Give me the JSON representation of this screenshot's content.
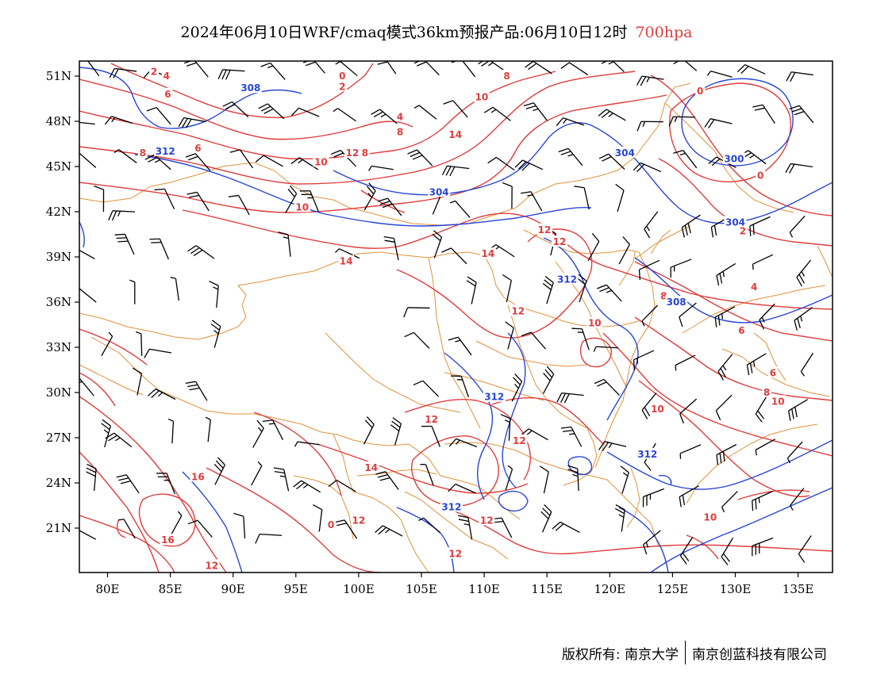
{
  "title": {
    "main": "2024年06月10日WRF/cmaq模式36km预报产品:06月10日12时",
    "level": "700hpa"
  },
  "colors": {
    "temperature": "#e03c3c",
    "height": "#2846d8",
    "border": "#e0923c",
    "wind": "#000000"
  },
  "axes": {
    "lat_ticks": [
      "51N",
      "48N",
      "45N",
      "42N",
      "39N",
      "36N",
      "33N",
      "30N",
      "27N",
      "24N",
      "21N"
    ],
    "lon_ticks": [
      "80E",
      "85E",
      "90E",
      "95E",
      "100E",
      "105E",
      "110E",
      "115E",
      "120E",
      "125E",
      "130E",
      "135E"
    ]
  },
  "contour_labels": {
    "temperature": [
      {
        "text": "2",
        "lon": 83.7,
        "lat": 51.3
      },
      {
        "text": "4",
        "lon": 84.7,
        "lat": 51.0
      },
      {
        "text": "6",
        "lon": 84.8,
        "lat": 49.8
      },
      {
        "text": "0",
        "lon": 98.7,
        "lat": 51.0
      },
      {
        "text": "2",
        "lon": 98.7,
        "lat": 50.3
      },
      {
        "text": "8",
        "lon": 111.8,
        "lat": 51.0
      },
      {
        "text": "10",
        "lon": 109.8,
        "lat": 49.6
      },
      {
        "text": "4",
        "lon": 103.3,
        "lat": 48.3
      },
      {
        "text": "8",
        "lon": 103.3,
        "lat": 47.3
      },
      {
        "text": "8",
        "lon": 82.8,
        "lat": 45.9
      },
      {
        "text": "6",
        "lon": 87.2,
        "lat": 46.2
      },
      {
        "text": "14",
        "lon": 107.7,
        "lat": 47.1
      },
      {
        "text": "12",
        "lon": 99.5,
        "lat": 45.9
      },
      {
        "text": "8",
        "lon": 100.5,
        "lat": 45.9
      },
      {
        "text": "10",
        "lon": 97.0,
        "lat": 45.3
      },
      {
        "text": "0",
        "lon": 127.2,
        "lat": 50.0
      },
      {
        "text": "0",
        "lon": 132.0,
        "lat": 44.4
      },
      {
        "text": "10",
        "lon": 95.5,
        "lat": 42.3
      },
      {
        "text": "14",
        "lon": 99.0,
        "lat": 38.7
      },
      {
        "text": "14",
        "lon": 110.3,
        "lat": 39.2
      },
      {
        "text": "12",
        "lon": 114.8,
        "lat": 40.8
      },
      {
        "text": "12",
        "lon": 116.0,
        "lat": 40.0
      },
      {
        "text": "2",
        "lon": 130.6,
        "lat": 40.7
      },
      {
        "text": "4",
        "lon": 131.5,
        "lat": 37.0
      },
      {
        "text": "8",
        "lon": 124.3,
        "lat": 36.4
      },
      {
        "text": "12",
        "lon": 112.7,
        "lat": 35.4
      },
      {
        "text": "10",
        "lon": 118.8,
        "lat": 34.6
      },
      {
        "text": "6",
        "lon": 130.5,
        "lat": 34.1
      },
      {
        "text": "6",
        "lon": 133.0,
        "lat": 31.3
      },
      {
        "text": "8",
        "lon": 132.5,
        "lat": 30.0
      },
      {
        "text": "10",
        "lon": 133.4,
        "lat": 29.4
      },
      {
        "text": "10",
        "lon": 123.8,
        "lat": 28.9
      },
      {
        "text": "12",
        "lon": 105.8,
        "lat": 28.2
      },
      {
        "text": "12",
        "lon": 112.8,
        "lat": 26.8
      },
      {
        "text": "14",
        "lon": 101.0,
        "lat": 25.0
      },
      {
        "text": "16",
        "lon": 87.2,
        "lat": 24.4
      },
      {
        "text": "12",
        "lon": 110.2,
        "lat": 21.5
      },
      {
        "text": "12",
        "lon": 100.0,
        "lat": 21.5
      },
      {
        "text": "16",
        "lon": 84.8,
        "lat": 20.2
      },
      {
        "text": "12",
        "lon": 88.3,
        "lat": 18.5
      },
      {
        "text": "12",
        "lon": 107.7,
        "lat": 19.3
      },
      {
        "text": "10",
        "lon": 128.0,
        "lat": 21.7
      },
      {
        "text": "0",
        "lon": 97.8,
        "lat": 21.2
      }
    ],
    "height": [
      {
        "text": "308",
        "lon": 91.4,
        "lat": 50.2
      },
      {
        "text": "312",
        "lon": 84.6,
        "lat": 46.0
      },
      {
        "text": "304",
        "lon": 121.2,
        "lat": 45.9
      },
      {
        "text": "300",
        "lon": 129.9,
        "lat": 45.5
      },
      {
        "text": "304",
        "lon": 106.4,
        "lat": 43.3
      },
      {
        "text": "304",
        "lon": 130.0,
        "lat": 41.3
      },
      {
        "text": "312",
        "lon": 116.6,
        "lat": 37.5
      },
      {
        "text": "308",
        "lon": 125.3,
        "lat": 36.0
      },
      {
        "text": "312",
        "lon": 110.8,
        "lat": 29.7
      },
      {
        "text": "312",
        "lon": 123.0,
        "lat": 25.9
      },
      {
        "text": "312",
        "lon": 107.4,
        "lat": 22.4
      }
    ]
  },
  "footer": {
    "left": "版权所有: 南京大学",
    "right": "南京创蓝科技有限公司"
  }
}
